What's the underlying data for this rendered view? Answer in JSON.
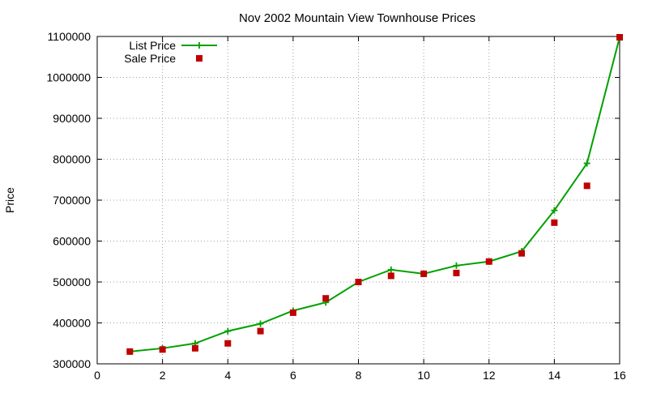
{
  "chart_data": {
    "type": "line",
    "title": "Nov 2002 Mountain View Townhouse Prices",
    "xlabel": "",
    "ylabel": "Price",
    "xlim": [
      0,
      16
    ],
    "ylim": [
      300000,
      1100000
    ],
    "xticks": [
      0,
      2,
      4,
      6,
      8,
      10,
      12,
      14,
      16
    ],
    "yticks": [
      300000,
      400000,
      500000,
      600000,
      700000,
      800000,
      900000,
      1000000,
      1100000
    ],
    "grid": true,
    "legend_position": "top-left",
    "series": [
      {
        "name": "List Price",
        "style": "linespoints",
        "marker": "plus",
        "color": "#00a000",
        "x": [
          1,
          2,
          3,
          4,
          5,
          6,
          7,
          8,
          9,
          10,
          11,
          12,
          13,
          14,
          15,
          16
        ],
        "y": [
          330000,
          338000,
          350000,
          380000,
          398000,
          430000,
          450000,
          500000,
          530000,
          520000,
          540000,
          550000,
          575000,
          675000,
          790000,
          1098000
        ]
      },
      {
        "name": "Sale Price",
        "style": "points",
        "marker": "square",
        "color": "#c00000",
        "x": [
          1,
          2,
          3,
          4,
          5,
          6,
          7,
          8,
          9,
          10,
          11,
          12,
          13,
          14,
          15,
          16
        ],
        "y": [
          330000,
          335000,
          338000,
          350000,
          380000,
          425000,
          460000,
          500000,
          515000,
          520000,
          522000,
          550000,
          570000,
          645000,
          735000,
          1098000
        ]
      }
    ]
  }
}
